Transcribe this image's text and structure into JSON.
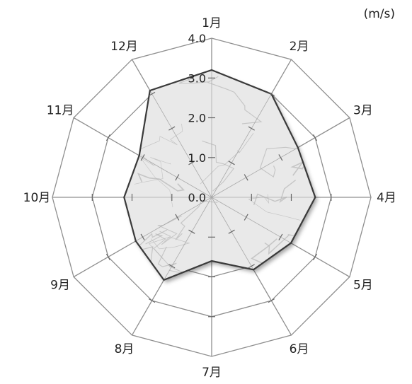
{
  "chart_data": {
    "type": "radar",
    "unit": "(m/s)",
    "categories": [
      "1月",
      "2月",
      "3月",
      "4月",
      "5月",
      "6月",
      "7月",
      "8月",
      "9月",
      "10月",
      "11月",
      "12月"
    ],
    "series": [
      {
        "values": [
          3.2,
          3.0,
          2.5,
          2.6,
          2.3,
          2.1,
          1.6,
          2.4,
          2.2,
          2.2,
          2.1,
          3.1
        ]
      }
    ],
    "rlim": [
      0,
      4
    ],
    "ticks": [
      "0.0",
      "1.0",
      "2.0",
      "3.0",
      "4.0"
    ],
    "tick_values": [
      0,
      1,
      2,
      3,
      4
    ],
    "grid": true,
    "colors": {
      "grid": "#8f8f8f",
      "series_line": "#3a3a3a",
      "series_fill": "#e9e9e9",
      "marble_vein": "#b7b7b7"
    }
  }
}
